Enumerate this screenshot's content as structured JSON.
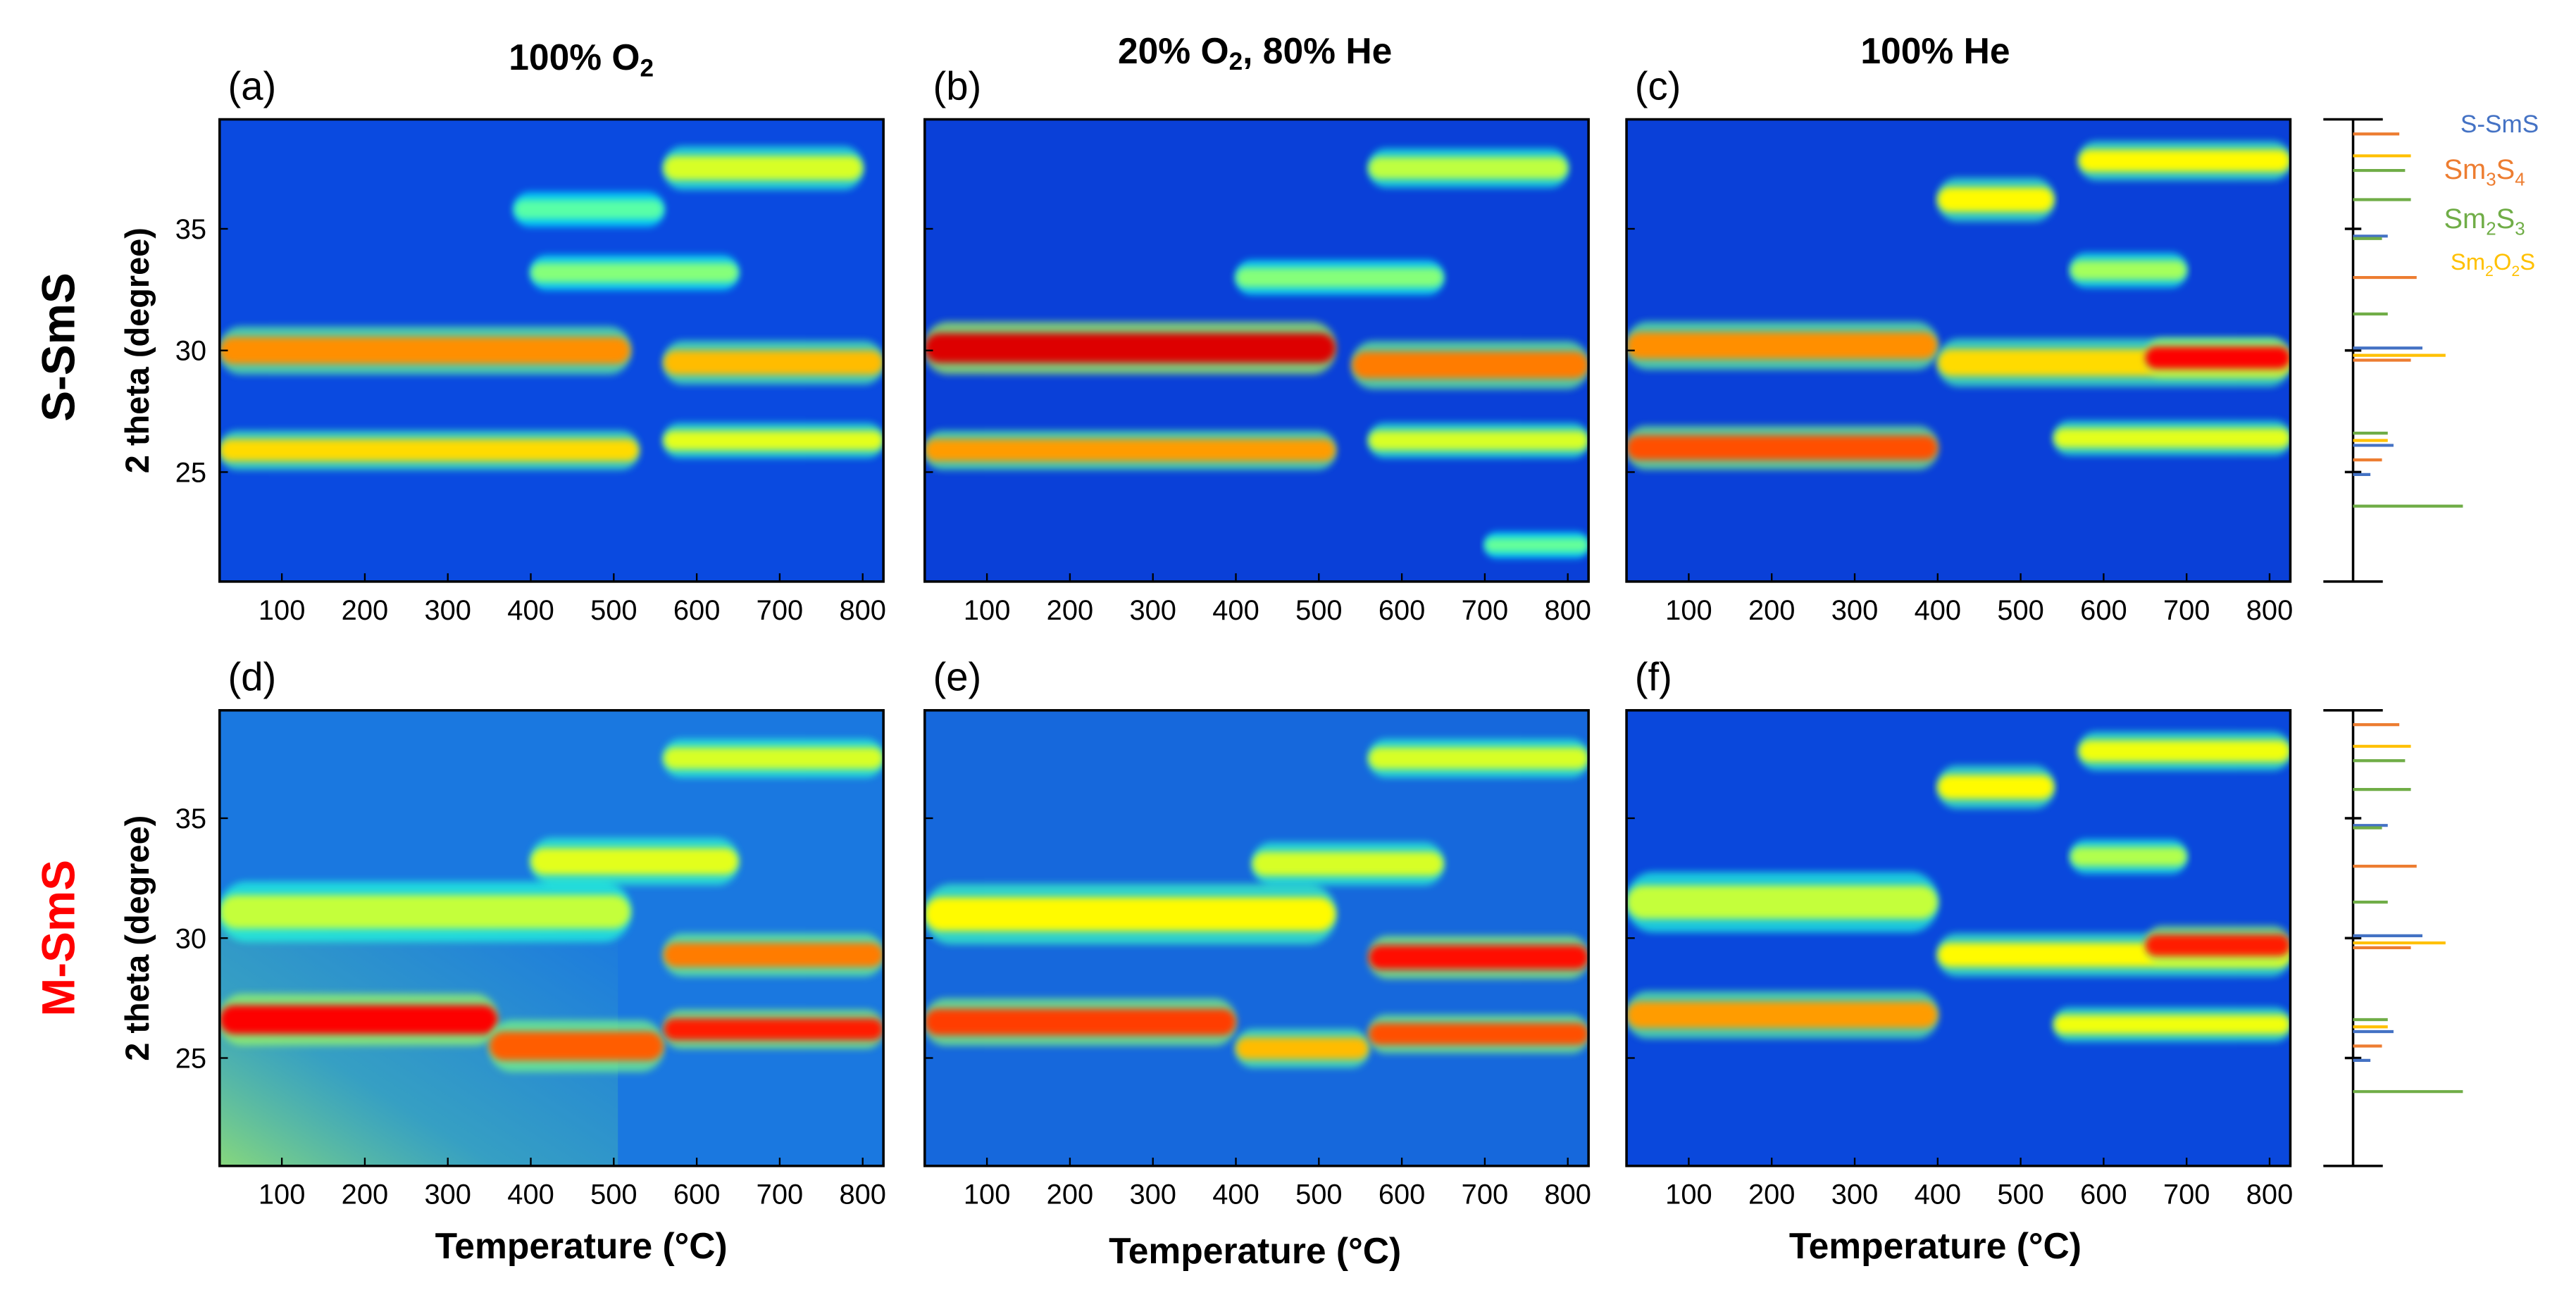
{
  "chart_data": {
    "type": "heatmap",
    "description": "In-situ XRD contour maps (2 theta vs temperature)",
    "x_axis": {
      "label": "Temperature (°C)",
      "ticks": [
        100,
        200,
        300,
        400,
        500,
        600,
        700,
        800
      ],
      "range": [
        25,
        825
      ]
    },
    "y_axis": {
      "label": "2 theta (degree)",
      "ticks": [
        25,
        30,
        35
      ],
      "range": [
        20.5,
        39.5
      ]
    },
    "columns": [
      {
        "label": "100% O",
        "subscript": "2",
        "suffix": ""
      },
      {
        "label": "20% O",
        "subscript": "2",
        "suffix": ", 80% He"
      },
      {
        "label": "100% He",
        "subscript": "",
        "suffix": ""
      }
    ],
    "rows": [
      {
        "label": "S-SmS",
        "color": "#000000"
      },
      {
        "label": "M-SmS",
        "color": "#ff0000"
      }
    ],
    "panels": [
      {
        "id": "(a)",
        "row": 0,
        "col": 0,
        "background": "#0a4ae0",
        "bands": [
          {
            "t0": 25,
            "t1": 520,
            "theta": 30.0,
            "width": 0.55,
            "intensity": 0.62
          },
          {
            "t0": 25,
            "t1": 530,
            "theta": 25.9,
            "width": 0.45,
            "intensity": 0.5
          },
          {
            "t0": 560,
            "t1": 825,
            "theta": 29.5,
            "width": 0.5,
            "intensity": 0.55
          },
          {
            "t0": 560,
            "t1": 825,
            "theta": 26.3,
            "width": 0.4,
            "intensity": 0.4
          },
          {
            "t0": 560,
            "t1": 800,
            "theta": 37.5,
            "width": 0.5,
            "intensity": 0.38
          },
          {
            "t0": 400,
            "t1": 650,
            "theta": 33.2,
            "width": 0.4,
            "intensity": 0.25
          },
          {
            "t0": 380,
            "t1": 560,
            "theta": 35.8,
            "width": 0.4,
            "intensity": 0.18
          }
        ]
      },
      {
        "id": "(b)",
        "row": 0,
        "col": 1,
        "background": "#0a40d8",
        "bands": [
          {
            "t0": 25,
            "t1": 520,
            "theta": 30.1,
            "width": 0.6,
            "intensity": 0.9
          },
          {
            "t0": 25,
            "t1": 520,
            "theta": 25.9,
            "width": 0.45,
            "intensity": 0.6
          },
          {
            "t0": 540,
            "t1": 825,
            "theta": 29.4,
            "width": 0.55,
            "intensity": 0.65
          },
          {
            "t0": 560,
            "t1": 825,
            "theta": 26.3,
            "width": 0.4,
            "intensity": 0.38
          },
          {
            "t0": 560,
            "t1": 800,
            "theta": 37.5,
            "width": 0.45,
            "intensity": 0.34
          },
          {
            "t0": 400,
            "t1": 650,
            "theta": 33.0,
            "width": 0.4,
            "intensity": 0.25
          },
          {
            "t0": 700,
            "t1": 825,
            "theta": 22.0,
            "width": 0.3,
            "intensity": 0.2
          }
        ]
      },
      {
        "id": "(c)",
        "row": 0,
        "col": 2,
        "background": "#0a40d8",
        "bands": [
          {
            "t0": 25,
            "t1": 400,
            "theta": 30.2,
            "width": 0.55,
            "intensity": 0.62
          },
          {
            "t0": 25,
            "t1": 400,
            "theta": 26.0,
            "width": 0.5,
            "intensity": 0.72
          },
          {
            "t0": 400,
            "t1": 825,
            "theta": 29.5,
            "width": 0.55,
            "intensity": 0.5
          },
          {
            "t0": 650,
            "t1": 825,
            "theta": 29.7,
            "width": 0.45,
            "intensity": 0.85
          },
          {
            "t0": 540,
            "t1": 825,
            "theta": 26.4,
            "width": 0.4,
            "intensity": 0.4
          },
          {
            "t0": 570,
            "t1": 825,
            "theta": 37.8,
            "width": 0.45,
            "intensity": 0.45
          },
          {
            "t0": 400,
            "t1": 540,
            "theta": 36.2,
            "width": 0.5,
            "intensity": 0.45
          },
          {
            "t0": 560,
            "t1": 700,
            "theta": 33.3,
            "width": 0.4,
            "intensity": 0.3
          }
        ]
      },
      {
        "id": "(d)",
        "row": 1,
        "col": 0,
        "background": "#1a78e0",
        "bands": [
          {
            "t0": 25,
            "t1": 360,
            "theta": 26.6,
            "width": 0.6,
            "intensity": 0.85
          },
          {
            "t0": 350,
            "t1": 560,
            "theta": 25.5,
            "width": 0.6,
            "intensity": 0.7
          },
          {
            "t0": 560,
            "t1": 825,
            "theta": 26.2,
            "width": 0.45,
            "intensity": 0.8
          },
          {
            "t0": 25,
            "t1": 520,
            "theta": 31.1,
            "width": 0.7,
            "intensity": 0.35
          },
          {
            "t0": 560,
            "t1": 825,
            "theta": 29.3,
            "width": 0.5,
            "intensity": 0.65
          },
          {
            "t0": 400,
            "t1": 650,
            "theta": 33.2,
            "width": 0.55,
            "intensity": 0.4
          },
          {
            "t0": 560,
            "t1": 825,
            "theta": 37.5,
            "width": 0.45,
            "intensity": 0.38
          }
        ]
      },
      {
        "id": "(e)",
        "row": 1,
        "col": 1,
        "background": "#1668dc",
        "bands": [
          {
            "t0": 25,
            "t1": 400,
            "theta": 26.5,
            "width": 0.55,
            "intensity": 0.75
          },
          {
            "t0": 400,
            "t1": 560,
            "theta": 25.4,
            "width": 0.45,
            "intensity": 0.55
          },
          {
            "t0": 560,
            "t1": 825,
            "theta": 26.0,
            "width": 0.45,
            "intensity": 0.72
          },
          {
            "t0": 25,
            "t1": 520,
            "theta": 31.0,
            "width": 0.7,
            "intensity": 0.45
          },
          {
            "t0": 560,
            "t1": 825,
            "theta": 29.2,
            "width": 0.5,
            "intensity": 0.82
          },
          {
            "t0": 420,
            "t1": 650,
            "theta": 33.1,
            "width": 0.5,
            "intensity": 0.38
          },
          {
            "t0": 560,
            "t1": 825,
            "theta": 37.5,
            "width": 0.45,
            "intensity": 0.38
          }
        ]
      },
      {
        "id": "(f)",
        "row": 1,
        "col": 2,
        "background": "#0a48dc",
        "bands": [
          {
            "t0": 25,
            "t1": 400,
            "theta": 26.8,
            "width": 0.55,
            "intensity": 0.6
          },
          {
            "t0": 25,
            "t1": 400,
            "theta": 31.5,
            "width": 0.7,
            "intensity": 0.35
          },
          {
            "t0": 400,
            "t1": 825,
            "theta": 29.3,
            "width": 0.5,
            "intensity": 0.45
          },
          {
            "t0": 650,
            "t1": 825,
            "theta": 29.7,
            "width": 0.45,
            "intensity": 0.8
          },
          {
            "t0": 540,
            "t1": 825,
            "theta": 26.4,
            "width": 0.4,
            "intensity": 0.42
          },
          {
            "t0": 570,
            "t1": 825,
            "theta": 37.8,
            "width": 0.45,
            "intensity": 0.42
          },
          {
            "t0": 400,
            "t1": 540,
            "theta": 36.3,
            "width": 0.5,
            "intensity": 0.45
          },
          {
            "t0": 560,
            "t1": 700,
            "theta": 33.4,
            "width": 0.4,
            "intensity": 0.32
          }
        ]
      }
    ],
    "reference_legend": [
      {
        "name": "S-SmS",
        "color": "#4472c4",
        "label_html": "S-SmS"
      },
      {
        "name": "Sm3S4",
        "color": "#ed7d31",
        "label_html": "Sm<tspan font-size='0.65em' dy='4'>3</tspan><tspan dy='-4'>S</tspan><tspan font-size='0.65em' dy='4'>4</tspan>"
      },
      {
        "name": "Sm2S3",
        "color": "#70ad47",
        "label_html": ""
      },
      {
        "name": "Sm2O2S",
        "color": "#ffc000",
        "label_html": ""
      }
    ],
    "legend_labels": {
      "S-SmS": "S-SmS",
      "Sm3S4": "Sm3S4",
      "Sm2S3": "Sm2S3",
      "Sm2O2S": "Sm2O2S"
    },
    "reference_lines": [
      {
        "phase": "Sm3S4",
        "theta": 38.9,
        "length": 0.4
      },
      {
        "phase": "Sm2O2S",
        "theta": 38.0,
        "length": 0.5
      },
      {
        "phase": "Sm2S3",
        "theta": 37.4,
        "length": 0.45
      },
      {
        "phase": "Sm2S3",
        "theta": 36.2,
        "length": 0.5
      },
      {
        "phase": "S-SmS",
        "theta": 34.7,
        "length": 0.3
      },
      {
        "phase": "Sm2S3",
        "theta": 34.6,
        "length": 0.25
      },
      {
        "phase": "Sm3S4",
        "theta": 33.0,
        "length": 0.55
      },
      {
        "phase": "Sm2S3",
        "theta": 31.5,
        "length": 0.3
      },
      {
        "phase": "S-SmS",
        "theta": 30.1,
        "length": 0.6
      },
      {
        "phase": "Sm2O2S",
        "theta": 29.8,
        "length": 0.8
      },
      {
        "phase": "Sm3S4",
        "theta": 29.6,
        "length": 0.5
      },
      {
        "phase": "Sm2S3",
        "theta": 26.6,
        "length": 0.3
      },
      {
        "phase": "Sm2O2S",
        "theta": 26.3,
        "length": 0.3
      },
      {
        "phase": "S-SmS",
        "theta": 26.1,
        "length": 0.35
      },
      {
        "phase": "Sm3S4",
        "theta": 25.5,
        "length": 0.25
      },
      {
        "phase": "S-SmS",
        "theta": 24.9,
        "length": 0.15
      },
      {
        "phase": "Sm2S3",
        "theta": 23.6,
        "length": 0.95
      }
    ]
  }
}
